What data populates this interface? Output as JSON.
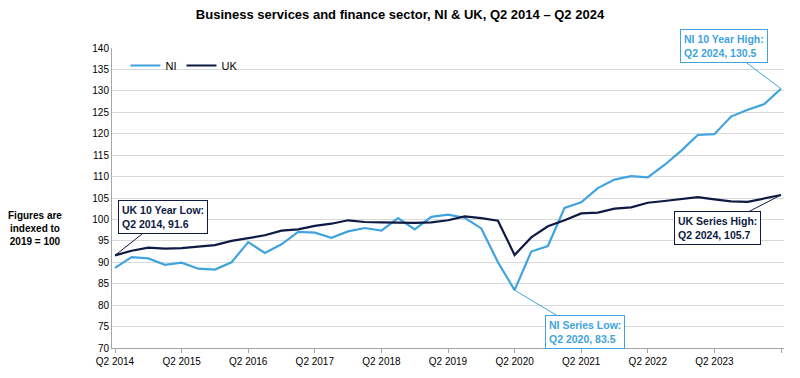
{
  "chart_data": {
    "type": "line",
    "title": "Business services and finance sector, NI & UK, Q2 2014 – Q2 2024",
    "y_label": [
      "Figures are",
      "indexed to",
      "2019 = 100"
    ],
    "categories": [
      "Q2 2014",
      null,
      null,
      null,
      "Q2 2015",
      null,
      null,
      null,
      "Q2 2016",
      null,
      null,
      null,
      "Q2 2017",
      null,
      null,
      null,
      "Q2 2018",
      null,
      null,
      null,
      "Q2 2019",
      null,
      null,
      null,
      "Q2 2020",
      null,
      null,
      null,
      "Q2 2021",
      null,
      null,
      null,
      "Q2 2022",
      null,
      null,
      null,
      "Q2 2023",
      null,
      null,
      null,
      "Q2 2024"
    ],
    "series": [
      {
        "name": "NI",
        "color": "#41A3DE",
        "values": [
          88.7,
          91.2,
          90.9,
          89.4,
          89.9,
          88.5,
          88.3,
          90.0,
          94.7,
          92.2,
          94.2,
          97.1,
          96.9,
          95.7,
          97.2,
          98.0,
          97.4,
          100.3,
          97.7,
          100.6,
          101.1,
          100.4,
          97.9,
          90.0,
          83.5,
          92.5,
          93.8,
          102.7,
          104.0,
          107.3,
          109.3,
          110.1,
          109.8,
          112.7,
          116.0,
          119.7,
          119.9,
          124.0,
          125.6,
          126.9,
          130.5
        ]
      },
      {
        "name": "UK",
        "color": "#0E1A44",
        "values": [
          91.6,
          92.7,
          93.4,
          93.2,
          93.3,
          93.7,
          94.0,
          95.0,
          95.6,
          96.3,
          97.4,
          97.7,
          98.5,
          99.0,
          99.8,
          99.4,
          99.3,
          99.2,
          99.2,
          99.3,
          99.8,
          100.7,
          100.3,
          99.7,
          91.7,
          95.8,
          98.4,
          99.8,
          101.4,
          101.6,
          102.5,
          102.8,
          103.9,
          104.3,
          104.7,
          105.2,
          104.7,
          104.2,
          104.1,
          104.9,
          105.7
        ]
      }
    ],
    "ylim": [
      70,
      140
    ],
    "yticks": [
      70,
      75,
      80,
      85,
      90,
      95,
      100,
      105,
      110,
      115,
      120,
      125,
      130,
      135,
      140
    ],
    "grid": true,
    "legend": "top left",
    "annotations": [
      {
        "text": [
          "UK 10 Year Low:",
          "Q2 2014, 91.6"
        ],
        "x": 0,
        "y": 91.6,
        "color": "#0E1A44"
      },
      {
        "text": [
          "NI Series Low:",
          "Q2 2020, 83.5"
        ],
        "x": 24,
        "y": 83.5,
        "color": "#41A3DE"
      },
      {
        "text": [
          "NI 10 Year High:",
          "Q2 2024, 130.5"
        ],
        "x": 40,
        "y": 130.5,
        "color": "#41A3DE"
      },
      {
        "text": [
          "UK Series High:",
          "Q2 2024, 105.7"
        ],
        "x": 40,
        "y": 105.7,
        "color": "#0E1A44"
      }
    ]
  }
}
